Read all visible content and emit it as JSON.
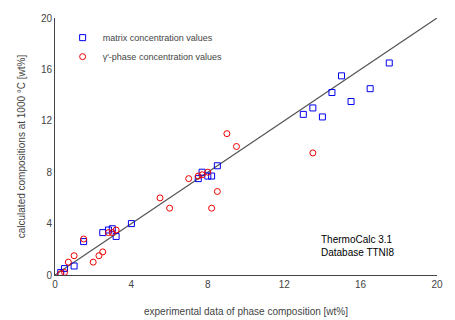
{
  "chart_data": {
    "type": "scatter",
    "xlabel": "experimental data of phase composition [wt%]",
    "ylabel": "calculated compositions at 1000 °C [wt%]",
    "xlim": [
      0,
      20
    ],
    "ylim": [
      0,
      20
    ],
    "xticks": [
      0,
      4,
      8,
      12,
      16,
      20
    ],
    "yticks": [
      0,
      4,
      8,
      12,
      16,
      20
    ],
    "grid": false,
    "legend": "upper left",
    "annotations": [
      {
        "text": "ThermoCalc 3.1\nDatabase TTNI8",
        "x": 13.8,
        "y": 1.2
      }
    ],
    "series": [
      {
        "type": "line",
        "color": "#555555",
        "x": [
          0,
          20
        ],
        "values": [
          0,
          20
        ]
      },
      {
        "type": "scatter",
        "name": "matrix concentration values",
        "color": "#0000ee",
        "marker": "square",
        "x": [
          0.3,
          0.5,
          1.0,
          1.5,
          2.5,
          2.8,
          3.0,
          3.2,
          4.0,
          7.5,
          7.7,
          8.0,
          8.2,
          8.5,
          13.0,
          13.5,
          14.0,
          14.5,
          15.0,
          15.5,
          16.5,
          17.5
        ],
        "values": [
          0.2,
          0.5,
          0.7,
          2.6,
          3.3,
          3.5,
          3.6,
          3.0,
          4.0,
          7.5,
          8.0,
          7.7,
          7.7,
          8.5,
          12.5,
          13.0,
          12.3,
          14.2,
          15.5,
          13.5,
          14.5,
          16.5
        ]
      },
      {
        "type": "scatter",
        "name": "γ'-phase concentration values",
        "color": "#ee0000",
        "marker": "circle",
        "x": [
          0.3,
          0.5,
          0.7,
          1.0,
          1.5,
          2.0,
          2.3,
          2.5,
          2.8,
          3.0,
          3.2,
          5.5,
          6.0,
          7.0,
          7.5,
          7.7,
          8.0,
          8.2,
          8.5,
          9.0,
          9.5,
          13.5
        ],
        "values": [
          0.1,
          0.2,
          1.0,
          1.5,
          2.8,
          1.0,
          1.5,
          1.8,
          3.3,
          3.3,
          3.5,
          6.0,
          5.2,
          7.5,
          7.7,
          7.8,
          8.0,
          5.2,
          6.5,
          11.0,
          10.0,
          9.5
        ]
      }
    ]
  }
}
